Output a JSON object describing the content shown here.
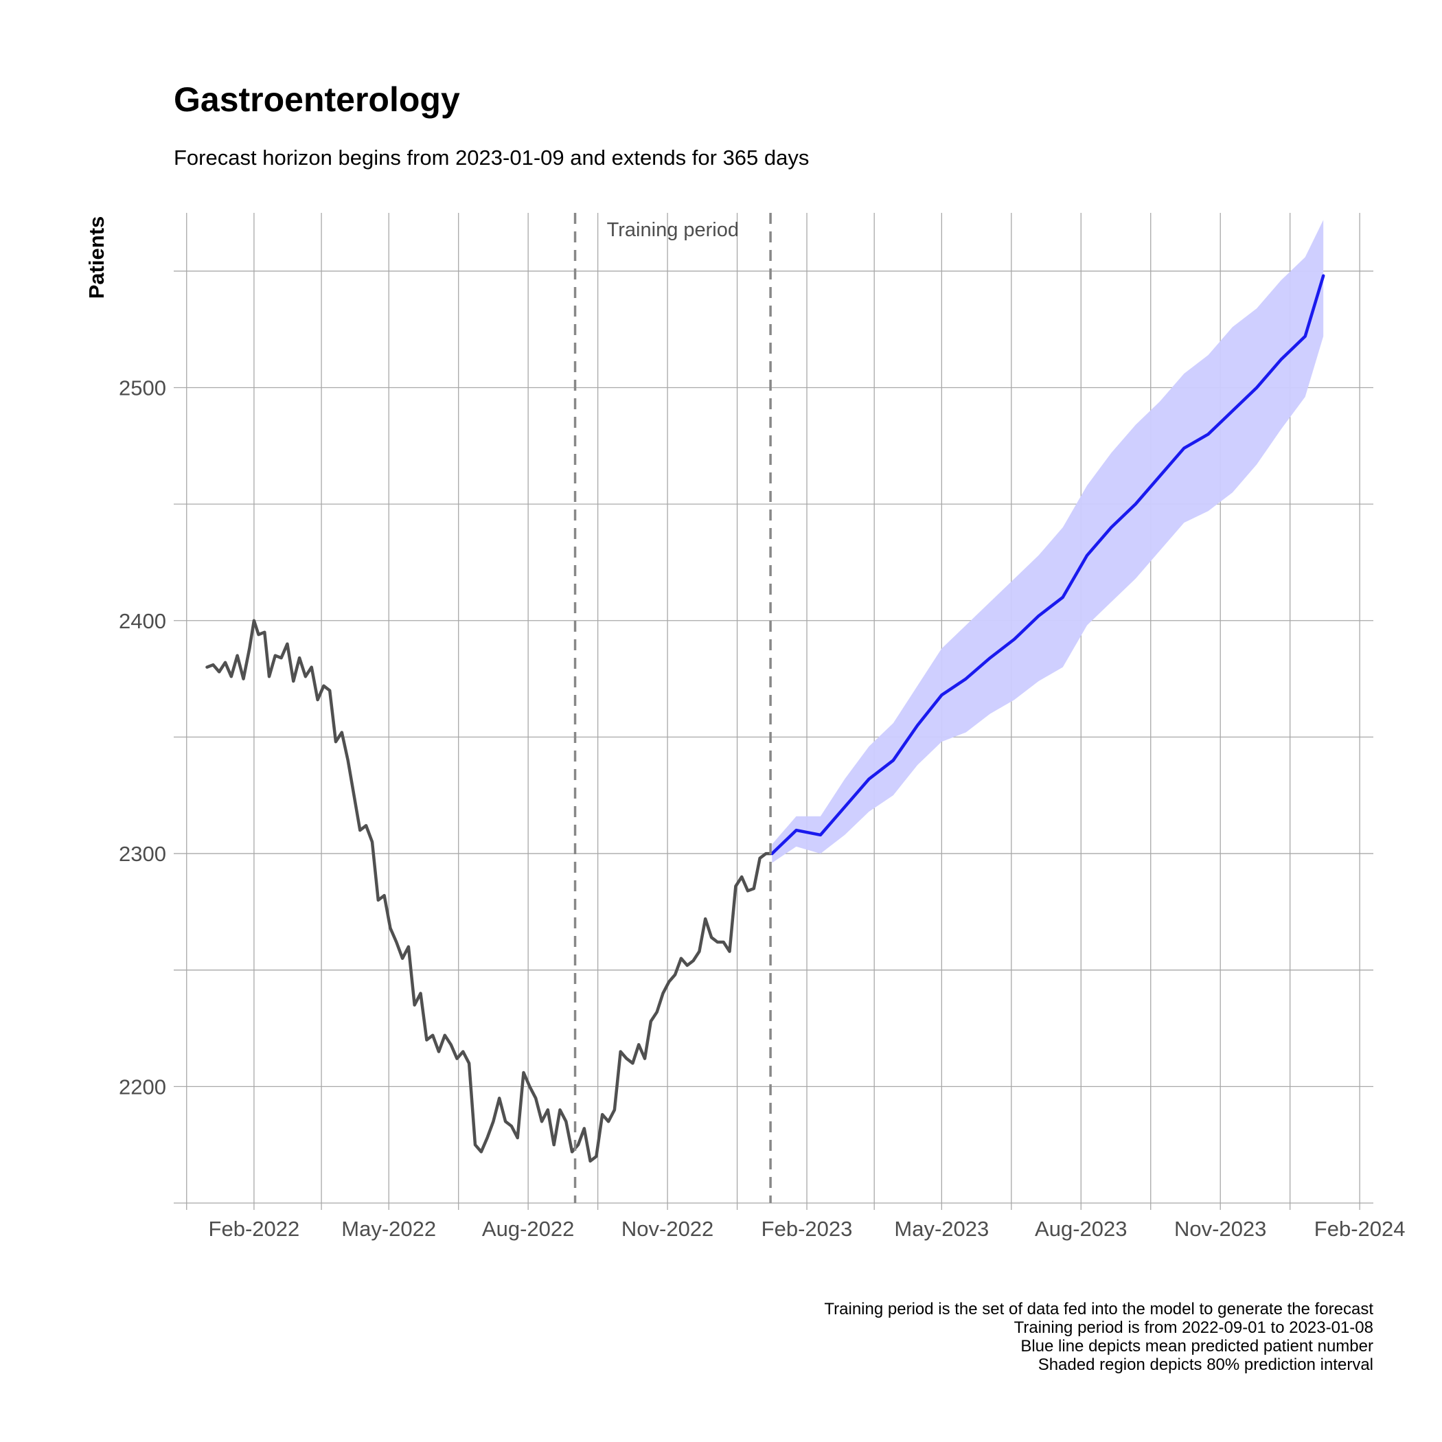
{
  "chart_data": {
    "type": "line",
    "title": "Gastroenterology",
    "subtitle": "Forecast horizon begins from 2023-01-09 and extends for 365 days",
    "xlabel": "",
    "ylabel": "Patients",
    "x_range": [
      "2021-12-10",
      "2024-02-10"
    ],
    "ylim": [
      2150,
      2575
    ],
    "y_ticks": [
      2200,
      2300,
      2400,
      2500
    ],
    "x_ticks": [
      {
        "date": "2022-02-01",
        "label": "Feb-2022"
      },
      {
        "date": "2022-05-01",
        "label": "May-2022"
      },
      {
        "date": "2022-08-01",
        "label": "Aug-2022"
      },
      {
        "date": "2022-11-01",
        "label": "Nov-2022"
      },
      {
        "date": "2023-02-01",
        "label": "Feb-2023"
      },
      {
        "date": "2023-05-01",
        "label": "May-2023"
      },
      {
        "date": "2023-08-01",
        "label": "Aug-2023"
      },
      {
        "date": "2023-11-01",
        "label": "Nov-2023"
      },
      {
        "date": "2024-02-01",
        "label": "Feb-2024"
      }
    ],
    "grid": true,
    "colors": {
      "history": "#505050",
      "forecast": "#1a1aee",
      "interval": "#ccccff",
      "training_lines": "#888888"
    },
    "training_period": {
      "start": "2022-09-01",
      "end": "2023-01-08",
      "label": "Training period"
    },
    "series": [
      {
        "points": [
          [
            "2022-01-01",
            2380
          ],
          [
            "2022-01-05",
            2381
          ],
          [
            "2022-01-09",
            2378
          ],
          [
            "2022-01-13",
            2382
          ],
          [
            "2022-01-17",
            2376
          ],
          [
            "2022-01-21",
            2385
          ],
          [
            "2022-01-25",
            2375
          ],
          [
            "2022-01-29",
            2388
          ],
          [
            "2022-02-01",
            2400
          ],
          [
            "2022-02-04",
            2394
          ],
          [
            "2022-02-08",
            2395
          ],
          [
            "2022-02-11",
            2376
          ],
          [
            "2022-02-15",
            2385
          ],
          [
            "2022-02-19",
            2384
          ],
          [
            "2022-02-23",
            2390
          ],
          [
            "2022-02-27",
            2374
          ],
          [
            "2022-03-03",
            2384
          ],
          [
            "2022-03-07",
            2376
          ],
          [
            "2022-03-11",
            2380
          ],
          [
            "2022-03-15",
            2366
          ],
          [
            "2022-03-19",
            2372
          ],
          [
            "2022-03-23",
            2370
          ],
          [
            "2022-03-27",
            2348
          ],
          [
            "2022-03-31",
            2352
          ],
          [
            "2022-04-04",
            2340
          ],
          [
            "2022-04-08",
            2325
          ],
          [
            "2022-04-12",
            2310
          ],
          [
            "2022-04-16",
            2312
          ],
          [
            "2022-04-20",
            2305
          ],
          [
            "2022-04-24",
            2280
          ],
          [
            "2022-04-28",
            2282
          ],
          [
            "2022-05-02",
            2268
          ],
          [
            "2022-05-06",
            2262
          ],
          [
            "2022-05-10",
            2255
          ],
          [
            "2022-05-14",
            2260
          ],
          [
            "2022-05-18",
            2235
          ],
          [
            "2022-05-22",
            2240
          ],
          [
            "2022-05-26",
            2220
          ],
          [
            "2022-05-30",
            2222
          ],
          [
            "2022-06-03",
            2215
          ],
          [
            "2022-06-07",
            2222
          ],
          [
            "2022-06-11",
            2218
          ],
          [
            "2022-06-15",
            2212
          ],
          [
            "2022-06-19",
            2215
          ],
          [
            "2022-06-23",
            2210
          ],
          [
            "2022-06-27",
            2175
          ],
          [
            "2022-07-01",
            2172
          ],
          [
            "2022-07-05",
            2178
          ],
          [
            "2022-07-09",
            2185
          ],
          [
            "2022-07-13",
            2195
          ],
          [
            "2022-07-17",
            2185
          ],
          [
            "2022-07-21",
            2183
          ],
          [
            "2022-07-25",
            2178
          ],
          [
            "2022-07-29",
            2206
          ],
          [
            "2022-08-02",
            2200
          ],
          [
            "2022-08-06",
            2195
          ],
          [
            "2022-08-10",
            2185
          ],
          [
            "2022-08-14",
            2190
          ],
          [
            "2022-08-18",
            2175
          ],
          [
            "2022-08-22",
            2190
          ],
          [
            "2022-08-26",
            2185
          ],
          [
            "2022-08-30",
            2172
          ],
          [
            "2022-09-03",
            2175
          ],
          [
            "2022-09-07",
            2182
          ],
          [
            "2022-09-11",
            2168
          ],
          [
            "2022-09-15",
            2170
          ],
          [
            "2022-09-19",
            2188
          ],
          [
            "2022-09-23",
            2185
          ],
          [
            "2022-09-27",
            2190
          ],
          [
            "2022-10-01",
            2215
          ],
          [
            "2022-10-05",
            2212
          ],
          [
            "2022-10-09",
            2210
          ],
          [
            "2022-10-13",
            2218
          ],
          [
            "2022-10-17",
            2212
          ],
          [
            "2022-10-21",
            2228
          ],
          [
            "2022-10-25",
            2232
          ],
          [
            "2022-10-29",
            2240
          ],
          [
            "2022-11-02",
            2245
          ],
          [
            "2022-11-06",
            2248
          ],
          [
            "2022-11-10",
            2255
          ],
          [
            "2022-11-14",
            2252
          ],
          [
            "2022-11-18",
            2254
          ],
          [
            "2022-11-22",
            2258
          ],
          [
            "2022-11-26",
            2272
          ],
          [
            "2022-11-30",
            2264
          ],
          [
            "2022-12-04",
            2262
          ],
          [
            "2022-12-08",
            2262
          ],
          [
            "2022-12-12",
            2258
          ],
          [
            "2022-12-16",
            2286
          ],
          [
            "2022-12-20",
            2290
          ],
          [
            "2022-12-24",
            2284
          ],
          [
            "2022-12-28",
            2285
          ],
          [
            "2023-01-01",
            2298
          ],
          [
            "2023-01-05",
            2300
          ],
          [
            "2023-01-08",
            2300
          ]
        ]
      },
      {
        "points": [
          [
            "2023-01-09",
            2300
          ],
          [
            "2023-01-25",
            2310
          ],
          [
            "2023-02-10",
            2308
          ],
          [
            "2023-02-26",
            2320
          ],
          [
            "2023-03-14",
            2332
          ],
          [
            "2023-03-30",
            2340
          ],
          [
            "2023-04-15",
            2355
          ],
          [
            "2023-05-01",
            2368
          ],
          [
            "2023-05-17",
            2375
          ],
          [
            "2023-06-02",
            2384
          ],
          [
            "2023-06-18",
            2392
          ],
          [
            "2023-07-04",
            2402
          ],
          [
            "2023-07-20",
            2410
          ],
          [
            "2023-08-05",
            2428
          ],
          [
            "2023-08-21",
            2440
          ],
          [
            "2023-09-06",
            2450
          ],
          [
            "2023-09-22",
            2462
          ],
          [
            "2023-10-08",
            2474
          ],
          [
            "2023-10-24",
            2480
          ],
          [
            "2023-11-09",
            2490
          ],
          [
            "2023-11-25",
            2500
          ],
          [
            "2023-12-11",
            2512
          ],
          [
            "2023-12-27",
            2522
          ],
          [
            "2024-01-08",
            2548
          ]
        ]
      }
    ],
    "interval": {
      "name": "80% prediction interval",
      "dates": [
        "2023-01-09",
        "2023-01-25",
        "2023-02-10",
        "2023-02-26",
        "2023-03-14",
        "2023-03-30",
        "2023-04-15",
        "2023-05-01",
        "2023-05-17",
        "2023-06-02",
        "2023-06-18",
        "2023-07-04",
        "2023-07-20",
        "2023-08-05",
        "2023-08-21",
        "2023-09-06",
        "2023-09-22",
        "2023-10-08",
        "2023-10-24",
        "2023-11-09",
        "2023-11-25",
        "2023-12-11",
        "2023-12-27",
        "2024-01-08"
      ],
      "lower": [
        2296,
        2303,
        2300,
        2308,
        2318,
        2325,
        2338,
        2348,
        2352,
        2360,
        2366,
        2374,
        2380,
        2398,
        2408,
        2418,
        2430,
        2442,
        2447,
        2455,
        2467,
        2482,
        2496,
        2522
      ],
      "upper": [
        2304,
        2316,
        2316,
        2332,
        2346,
        2356,
        2372,
        2388,
        2398,
        2408,
        2418,
        2428,
        2440,
        2458,
        2472,
        2484,
        2494,
        2506,
        2514,
        2526,
        2534,
        2546,
        2556,
        2572
      ]
    },
    "caption": [
      "Training period is the set of data fed into the model to generate the forecast",
      "Training period is from 2022-09-01 to 2023-01-08",
      "Blue line depicts mean predicted patient number",
      "Shaded region depicts 80% prediction interval"
    ]
  }
}
